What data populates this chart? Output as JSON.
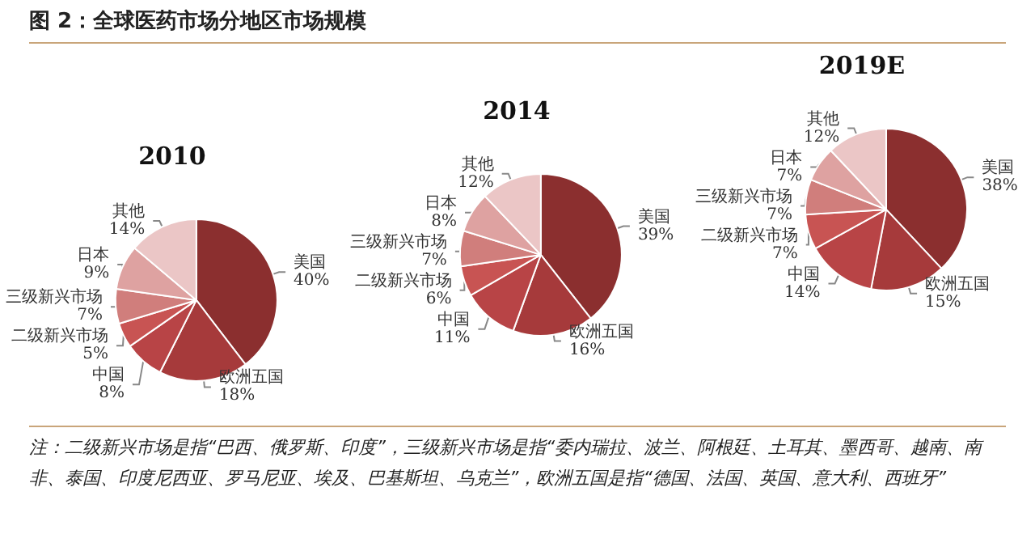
{
  "chart_data": [
    {
      "type": "pie",
      "title": "2010",
      "annotations": [
        "图 2：全球医药市场分地区市场规模"
      ],
      "categories": [
        "美国",
        "欧洲五国",
        "中国",
        "二级新兴市场",
        "三级新兴市场",
        "日本",
        "其他"
      ],
      "values": [
        40,
        18,
        8,
        5,
        7,
        9,
        14
      ],
      "value_labels": [
        "40%",
        "18%",
        "8%",
        "5%",
        "7%",
        "9%",
        "14%"
      ],
      "colors": [
        "#8b2f2f",
        "#a63a3b",
        "#b84446",
        "#c85453",
        "#d07e7c",
        "#dea2a1",
        "#ebc6c6"
      ]
    },
    {
      "type": "pie",
      "title": "2014",
      "categories": [
        "美国",
        "欧洲五国",
        "中国",
        "二级新兴市场",
        "三级新兴市场",
        "日本",
        "其他"
      ],
      "values": [
        39,
        16,
        11,
        6,
        7,
        8,
        12
      ],
      "value_labels": [
        "39%",
        "16%",
        "11%",
        "6%",
        "7%",
        "8%",
        "12%"
      ],
      "colors": [
        "#8b2f2f",
        "#a63a3b",
        "#b84446",
        "#c85453",
        "#d07e7c",
        "#dea2a1",
        "#ebc6c6"
      ]
    },
    {
      "type": "pie",
      "title": "2019E",
      "annotations": [
        "注：二级新兴市场是指“巴西、俄罗斯、印度”，三级新兴市场是指“委内瑞拉、波兰、阿根廷、土耳其、墨西哥、越南、南非、泰国、印度尼西亚、罗马尼亚、埃及、巴基斯坦、乌克兰”，欧洲五国是指“德国、法国、英国、意大利、西班牙”"
      ],
      "categories": [
        "美国",
        "欧洲五国",
        "中国",
        "二级新兴市场",
        "三级新兴市场",
        "日本",
        "其他"
      ],
      "values": [
        38,
        15,
        14,
        7,
        7,
        7,
        12
      ],
      "value_labels": [
        "38%",
        "15%",
        "14%",
        "7%",
        "7%",
        "7%",
        "12%"
      ],
      "colors": [
        "#8b2f2f",
        "#a63a3b",
        "#b84446",
        "#c85453",
        "#d07e7c",
        "#dea2a1",
        "#ebc6c6"
      ]
    }
  ]
}
